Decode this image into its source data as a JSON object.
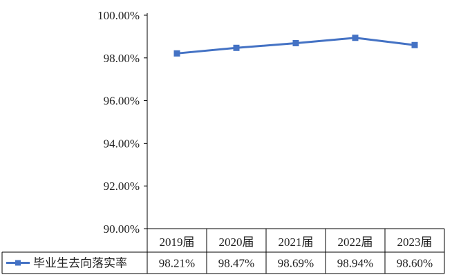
{
  "chart_data": {
    "type": "line",
    "title": "",
    "xlabel": "",
    "ylabel": "",
    "categories": [
      "2019届",
      "2020届",
      "2021届",
      "2022届",
      "2023届"
    ],
    "y_ticks": [
      "90.00%",
      "92.00%",
      "94.00%",
      "96.00%",
      "98.00%",
      "100.00%"
    ],
    "ylim": [
      90,
      100
    ],
    "grid": false,
    "legend": "data-table-left",
    "series": [
      {
        "name": "毕业生去向落实率",
        "values": [
          98.21,
          98.47,
          98.69,
          98.94,
          98.6
        ],
        "labels": [
          "98.21%",
          "98.47%",
          "98.69%",
          "98.94%",
          "98.60%"
        ],
        "color": "#4472C4",
        "marker": "square"
      }
    ]
  }
}
